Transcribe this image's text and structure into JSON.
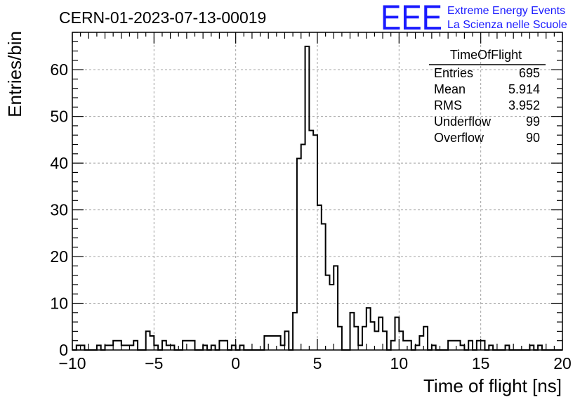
{
  "chart_data": {
    "type": "histogram",
    "title": "CERN-01-2023-07-13-00019",
    "xlabel": "Time of flight [ns]",
    "ylabel": "Entries/bin",
    "xlim": [
      -10,
      20
    ],
    "ylim": [
      0,
      68
    ],
    "bin_width": 0.25,
    "xticks": [
      -10,
      -5,
      0,
      5,
      10,
      15,
      20
    ],
    "xtick_labels": [
      "−10",
      "−5",
      "0",
      "5",
      "10",
      "15",
      "20"
    ],
    "yticks": [
      0,
      10,
      20,
      30,
      40,
      50,
      60
    ],
    "yticks_labels": [
      "0",
      "10",
      "20",
      "30",
      "40",
      "50",
      "60"
    ],
    "grid": true,
    "bin_edges_start": -10,
    "counts": [
      0,
      1,
      1,
      0,
      0,
      0,
      1,
      0,
      1,
      1,
      2,
      2,
      1,
      1,
      1,
      2,
      0,
      0,
      4,
      3,
      1,
      0,
      2,
      1,
      1,
      0,
      0,
      2,
      2,
      2,
      0,
      0,
      1,
      0,
      1,
      0,
      2,
      2,
      0,
      1,
      0,
      1,
      0,
      0,
      0,
      0,
      0,
      3,
      3,
      3,
      3,
      1,
      4,
      0,
      8,
      41,
      44,
      65,
      47,
      46,
      31,
      27,
      16,
      14,
      18,
      5,
      0,
      0,
      8,
      5,
      1,
      5,
      9,
      6,
      4,
      7,
      4,
      0,
      2,
      7,
      4,
      2,
      2,
      0,
      1,
      3,
      5,
      0,
      1,
      0,
      0,
      0,
      2,
      2,
      2,
      1,
      0,
      2,
      0,
      2,
      2,
      0,
      1,
      0,
      0,
      0,
      1,
      0,
      0,
      0,
      0,
      0,
      1,
      0,
      1,
      0,
      0,
      0,
      0,
      0
    ],
    "stats": {
      "title": "TimeOfFlight",
      "rows": [
        {
          "label": "Entries",
          "value": "695"
        },
        {
          "label": "Mean",
          "value": "5.914"
        },
        {
          "label": "RMS",
          "value": "3.952"
        },
        {
          "label": "Underflow",
          "value": "99"
        },
        {
          "label": "Overflow",
          "value": "90"
        }
      ]
    },
    "line_color": "#000000",
    "grid_color": "#a0a0a0"
  },
  "logo": {
    "mark": "EEE",
    "line1": "Extreme Energy Events",
    "line2": "La Scienza nelle Scuole",
    "color": "#1a1aff"
  }
}
